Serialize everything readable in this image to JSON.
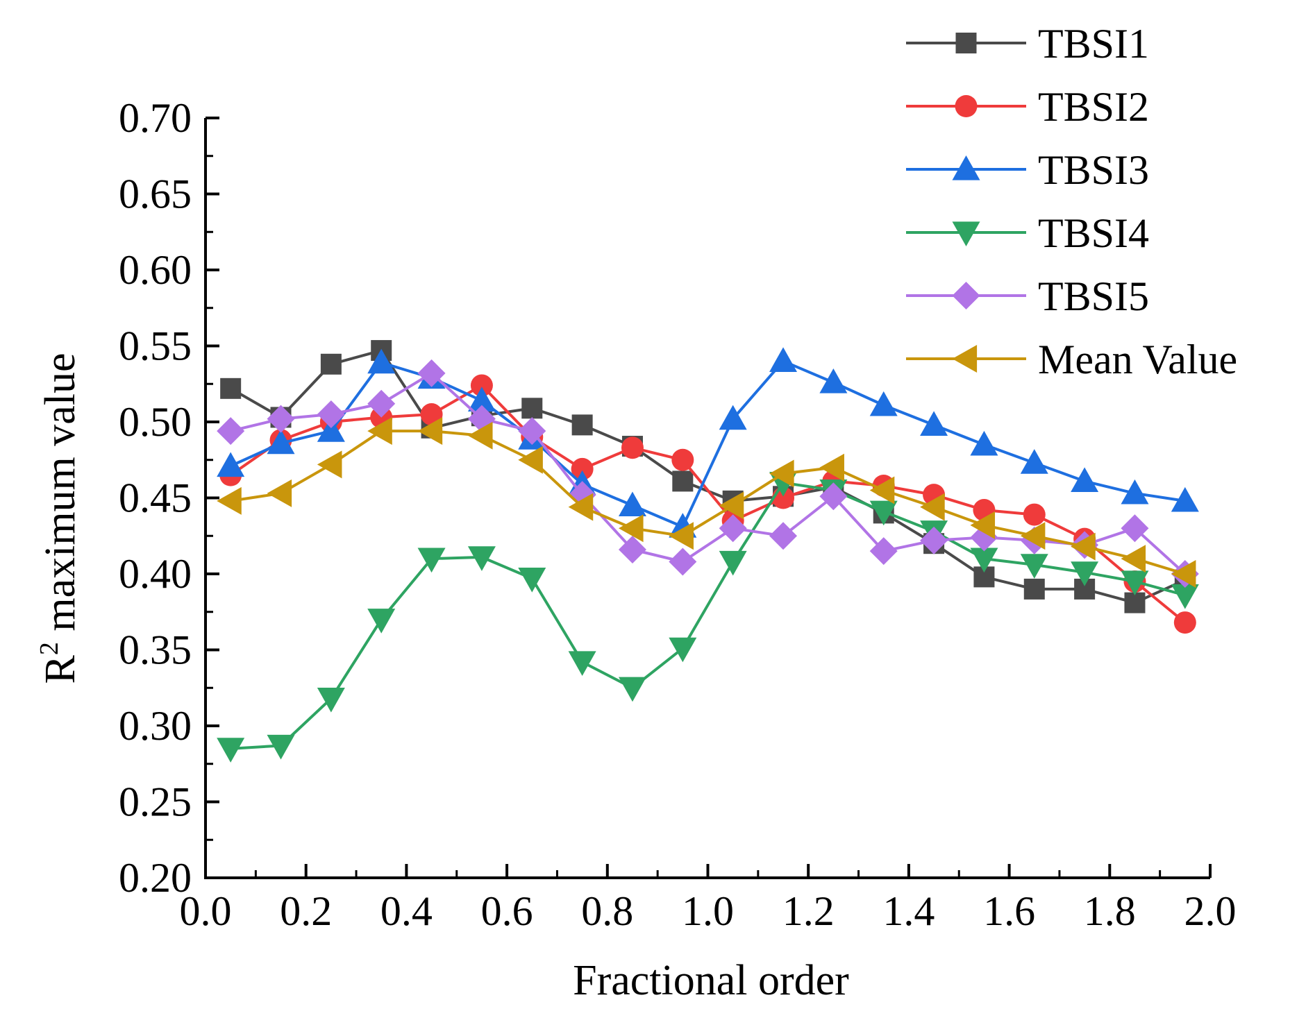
{
  "chart_data": {
    "type": "line",
    "title": "",
    "xlabel": "Fractional order",
    "ylabel": {
      "base": "R",
      "superscript": "2",
      "rest": " maximum value"
    },
    "xlim": [
      0.0,
      2.0
    ],
    "ylim": [
      0.2,
      0.7
    ],
    "xticks": [
      "0.0",
      "0.2",
      "0.4",
      "0.6",
      "0.8",
      "1.0",
      "1.2",
      "1.4",
      "1.6",
      "1.8",
      "2.0"
    ],
    "yticks": [
      "0.20",
      "0.25",
      "0.30",
      "0.35",
      "0.40",
      "0.45",
      "0.50",
      "0.55",
      "0.60",
      "0.65",
      "0.70"
    ],
    "grid": false,
    "legend_position": "top-right, outside plot",
    "x": [
      0.05,
      0.15,
      0.25,
      0.35,
      0.45,
      0.55,
      0.65,
      0.75,
      0.85,
      0.95,
      1.05,
      1.15,
      1.25,
      1.35,
      1.45,
      1.55,
      1.65,
      1.75,
      1.85,
      1.95
    ],
    "series": [
      {
        "name": "TBSI1",
        "color": "#4a4a4a",
        "marker": "square",
        "values": [
          0.522,
          0.503,
          0.538,
          0.547,
          0.496,
          0.504,
          0.509,
          0.498,
          0.484,
          0.461,
          0.448,
          0.451,
          0.457,
          0.44,
          0.42,
          0.398,
          0.39,
          0.39,
          0.381,
          0.396
        ]
      },
      {
        "name": "TBSI2",
        "color": "#ef3b3b",
        "marker": "circle",
        "values": [
          0.465,
          0.488,
          0.5,
          0.503,
          0.505,
          0.524,
          0.49,
          0.469,
          0.483,
          0.475,
          0.435,
          0.45,
          0.461,
          0.458,
          0.452,
          0.442,
          0.439,
          0.423,
          0.395,
          0.368
        ]
      },
      {
        "name": "TBSI3",
        "color": "#1e6fe0",
        "marker": "triangle-up",
        "values": [
          0.471,
          0.486,
          0.494,
          0.539,
          0.529,
          0.514,
          0.489,
          0.459,
          0.445,
          0.431,
          0.502,
          0.54,
          0.526,
          0.511,
          0.498,
          0.485,
          0.473,
          0.461,
          0.453,
          0.448
        ]
      },
      {
        "name": "TBSI4",
        "color": "#2ea462",
        "marker": "triangle-down",
        "values": [
          0.285,
          0.287,
          0.318,
          0.37,
          0.41,
          0.411,
          0.397,
          0.342,
          0.325,
          0.351,
          0.408,
          0.46,
          0.455,
          0.441,
          0.428,
          0.41,
          0.406,
          0.401,
          0.395,
          0.386
        ]
      },
      {
        "name": "TBSI5",
        "color": "#b174e6",
        "marker": "diamond",
        "values": [
          0.494,
          0.502,
          0.505,
          0.512,
          0.532,
          0.502,
          0.494,
          0.452,
          0.416,
          0.408,
          0.43,
          0.425,
          0.451,
          0.415,
          0.422,
          0.424,
          0.422,
          0.419,
          0.43,
          0.4
        ]
      },
      {
        "name": "Mean Value",
        "color": "#c9960c",
        "marker": "triangle-left",
        "values": [
          0.448,
          0.453,
          0.472,
          0.494,
          0.494,
          0.491,
          0.475,
          0.444,
          0.43,
          0.425,
          0.445,
          0.466,
          0.47,
          0.455,
          0.444,
          0.432,
          0.425,
          0.418,
          0.41,
          0.4
        ]
      }
    ]
  }
}
